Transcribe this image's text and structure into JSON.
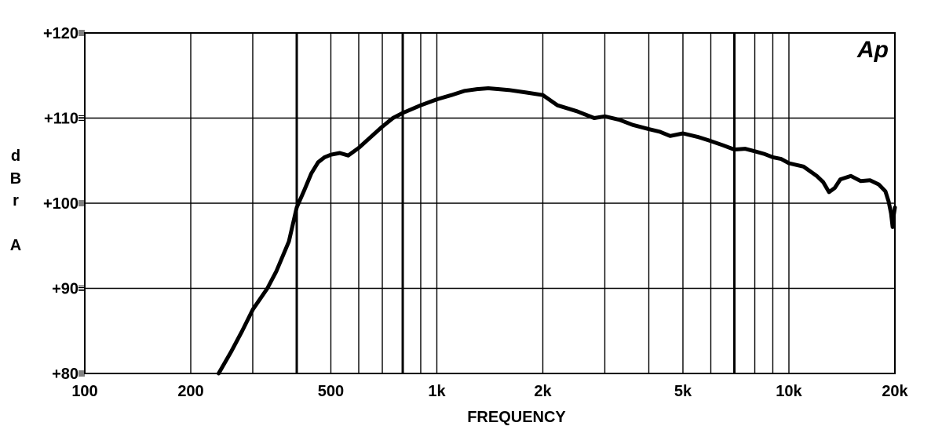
{
  "chart_data": {
    "type": "line",
    "title": "",
    "xlabel": "FREQUENCY",
    "ylabel_lines": [
      "d",
      "B",
      "r",
      "",
      "A"
    ],
    "x_scale": "log",
    "xlim": [
      100,
      20000
    ],
    "ylim": [
      80,
      120
    ],
    "grid": true,
    "logo_text": "Ap",
    "x_ticks": [
      {
        "value": 100,
        "label": "100"
      },
      {
        "value": 200,
        "label": "200"
      },
      {
        "value": 500,
        "label": "500"
      },
      {
        "value": 1000,
        "label": "1k"
      },
      {
        "value": 2000,
        "label": "2k"
      },
      {
        "value": 5000,
        "label": "5k"
      },
      {
        "value": 10000,
        "label": "10k"
      },
      {
        "value": 20000,
        "label": "20k"
      }
    ],
    "x_grid": [
      200,
      300,
      400,
      500,
      600,
      700,
      800,
      900,
      1000,
      2000,
      3000,
      4000,
      5000,
      6000,
      7000,
      8000,
      9000,
      10000
    ],
    "x_grid_heavy": [
      400,
      800,
      7000
    ],
    "y_ticks": [
      {
        "value": 80,
        "label": "+80"
      },
      {
        "value": 90,
        "label": "+90"
      },
      {
        "value": 100,
        "label": "+100"
      },
      {
        "value": 110,
        "label": "+110"
      },
      {
        "value": 120,
        "label": "+120"
      }
    ],
    "series": [
      {
        "points": [
          [
            240,
            80
          ],
          [
            260,
            82.5
          ],
          [
            280,
            85
          ],
          [
            300,
            87.5
          ],
          [
            330,
            90
          ],
          [
            350,
            92
          ],
          [
            380,
            95.5
          ],
          [
            400,
            99.5
          ],
          [
            420,
            101.5
          ],
          [
            440,
            103.5
          ],
          [
            460,
            104.8
          ],
          [
            480,
            105.4
          ],
          [
            500,
            105.7
          ],
          [
            530,
            105.9
          ],
          [
            560,
            105.6
          ],
          [
            600,
            106.5
          ],
          [
            650,
            107.8
          ],
          [
            700,
            109
          ],
          [
            750,
            110
          ],
          [
            800,
            110.6
          ],
          [
            900,
            111.5
          ],
          [
            1000,
            112.2
          ],
          [
            1100,
            112.7
          ],
          [
            1200,
            113.2
          ],
          [
            1300,
            113.4
          ],
          [
            1400,
            113.5
          ],
          [
            1500,
            113.4
          ],
          [
            1600,
            113.3
          ],
          [
            1800,
            113
          ],
          [
            2000,
            112.7
          ],
          [
            2200,
            111.5
          ],
          [
            2500,
            110.8
          ],
          [
            2800,
            110
          ],
          [
            3000,
            110.2
          ],
          [
            3300,
            109.8
          ],
          [
            3600,
            109.2
          ],
          [
            4000,
            108.7
          ],
          [
            4300,
            108.4
          ],
          [
            4600,
            107.9
          ],
          [
            5000,
            108.2
          ],
          [
            5500,
            107.8
          ],
          [
            6000,
            107.3
          ],
          [
            6500,
            106.8
          ],
          [
            7000,
            106.3
          ],
          [
            7500,
            106.4
          ],
          [
            8000,
            106.1
          ],
          [
            8500,
            105.8
          ],
          [
            9000,
            105.4
          ],
          [
            9500,
            105.2
          ],
          [
            10000,
            104.7
          ],
          [
            11000,
            104.3
          ],
          [
            12000,
            103.2
          ],
          [
            12500,
            102.5
          ],
          [
            13000,
            101.3
          ],
          [
            13500,
            101.8
          ],
          [
            14000,
            102.8
          ],
          [
            15000,
            103.2
          ],
          [
            16000,
            102.6
          ],
          [
            17000,
            102.7
          ],
          [
            18000,
            102.2
          ],
          [
            18800,
            101.4
          ],
          [
            19200,
            100.2
          ],
          [
            19500,
            98.8
          ],
          [
            19700,
            97.2
          ],
          [
            19850,
            98.6
          ],
          [
            20000,
            99.5
          ]
        ]
      }
    ]
  }
}
